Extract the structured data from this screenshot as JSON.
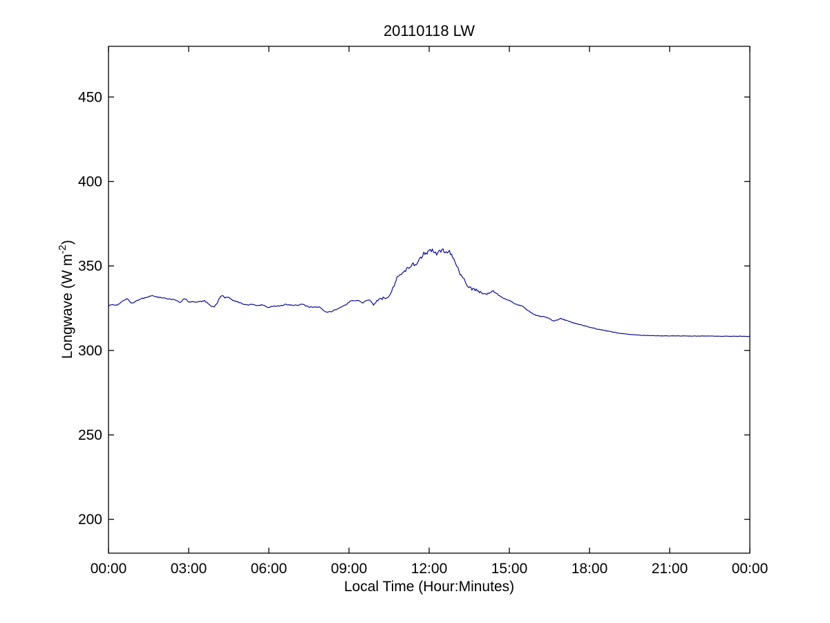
{
  "figure": {
    "title": "20110118 LW",
    "xlabel": "Local Time (Hour:Minutes)",
    "ylabel_prefix": "Longwave (W m",
    "ylabel_sup": "-2",
    "ylabel_suffix": ")"
  },
  "colors": {
    "line": "#000099",
    "axis": "#000000",
    "background": "#ffffff"
  },
  "chart_data": {
    "type": "line",
    "title": "20110118 LW",
    "xlabel": "Local Time (Hour:Minutes)",
    "ylabel": "Longwave (W m^-2)",
    "grid": false,
    "legend": null,
    "xlim_hours": [
      0,
      24
    ],
    "ylim": [
      180,
      480
    ],
    "xticks": [
      "00:00",
      "03:00",
      "06:00",
      "09:00",
      "12:00",
      "15:00",
      "18:00",
      "21:00",
      "00:00"
    ],
    "yticks": [
      200,
      250,
      300,
      350,
      400,
      450
    ],
    "series": [
      {
        "name": "longwave",
        "color": "#000099",
        "units": "W m^-2",
        "x_units": "hours",
        "points": [
          [
            0,
            326.5
          ],
          [
            0.17,
            327.2
          ],
          [
            0.33,
            327
          ],
          [
            0.45,
            328
          ],
          [
            0.6,
            330
          ],
          [
            0.7,
            330.7
          ],
          [
            0.8,
            328.6
          ],
          [
            0.9,
            328
          ],
          [
            1,
            328.8
          ],
          [
            1.15,
            330.2
          ],
          [
            1.3,
            330.8
          ],
          [
            1.5,
            331.9
          ],
          [
            1.6,
            332.3
          ],
          [
            1.7,
            332.3
          ],
          [
            1.85,
            331.5
          ],
          [
            2,
            331.3
          ],
          [
            2.15,
            330.7
          ],
          [
            2.3,
            330.3
          ],
          [
            2.45,
            330
          ],
          [
            2.6,
            329
          ],
          [
            2.7,
            328.5
          ],
          [
            2.8,
            330.3
          ],
          [
            2.87,
            330.9
          ],
          [
            2.95,
            329.3
          ],
          [
            3.05,
            328.4
          ],
          [
            3.15,
            329
          ],
          [
            3.25,
            328.6
          ],
          [
            3.35,
            329
          ],
          [
            3.5,
            329
          ],
          [
            3.6,
            329.4
          ],
          [
            3.7,
            328
          ],
          [
            3.83,
            326.2
          ],
          [
            3.95,
            325.8
          ],
          [
            4.05,
            327.5
          ],
          [
            4.13,
            330.5
          ],
          [
            4.2,
            331.8
          ],
          [
            4.28,
            332.3
          ],
          [
            4.35,
            331
          ],
          [
            4.42,
            331.6
          ],
          [
            4.5,
            331.3
          ],
          [
            4.58,
            330.3
          ],
          [
            4.7,
            329.5
          ],
          [
            4.8,
            328.9
          ],
          [
            4.95,
            328
          ],
          [
            5.1,
            327.2
          ],
          [
            5.2,
            326.8
          ],
          [
            5.32,
            327.4
          ],
          [
            5.45,
            327
          ],
          [
            5.6,
            326.6
          ],
          [
            5.77,
            327
          ],
          [
            5.9,
            326.1
          ],
          [
            5.97,
            325
          ],
          [
            6.05,
            325.8
          ],
          [
            6.2,
            326.3
          ],
          [
            6.35,
            326.3
          ],
          [
            6.5,
            326.6
          ],
          [
            6.6,
            327.1
          ],
          [
            6.75,
            327
          ],
          [
            6.9,
            326.8
          ],
          [
            7,
            326.8
          ],
          [
            7.15,
            327.1
          ],
          [
            7.27,
            327.4
          ],
          [
            7.4,
            326.4
          ],
          [
            7.5,
            325.8
          ],
          [
            7.65,
            325.4
          ],
          [
            7.78,
            325.8
          ],
          [
            7.88,
            325.6
          ],
          [
            7.97,
            325
          ],
          [
            8.1,
            323.1
          ],
          [
            8.22,
            322.7
          ],
          [
            8.35,
            323.1
          ],
          [
            8.5,
            324.1
          ],
          [
            8.62,
            325
          ],
          [
            8.75,
            325.9
          ],
          [
            8.87,
            327
          ],
          [
            9,
            328.7
          ],
          [
            9.1,
            329.6
          ],
          [
            9.25,
            329.5
          ],
          [
            9.4,
            329.2
          ],
          [
            9.52,
            328.2
          ],
          [
            9.65,
            329.4
          ],
          [
            9.75,
            329.8
          ],
          [
            9.85,
            328.8
          ],
          [
            9.93,
            326.9
          ],
          [
            10,
            328.8
          ],
          [
            10.1,
            330.1
          ],
          [
            10.25,
            330.9
          ],
          [
            10.4,
            331.6
          ],
          [
            10.5,
            332.6
          ],
          [
            10.57,
            334.5
          ],
          [
            10.65,
            337
          ],
          [
            10.73,
            341
          ],
          [
            10.83,
            344.6
          ],
          [
            10.93,
            345.6
          ],
          [
            11,
            346
          ],
          [
            11.08,
            347.2
          ],
          [
            11.2,
            348.6
          ],
          [
            11.3,
            349.4
          ],
          [
            11.4,
            351.4
          ],
          [
            11.5,
            350.2
          ],
          [
            11.6,
            353.6
          ],
          [
            11.72,
            355.2
          ],
          [
            11.84,
            357.6
          ],
          [
            11.97,
            358.7
          ],
          [
            12.1,
            359.2
          ],
          [
            12.2,
            356.6
          ],
          [
            12.33,
            358.6
          ],
          [
            12.47,
            359.5
          ],
          [
            12.6,
            358.6
          ],
          [
            12.75,
            358.1
          ],
          [
            12.88,
            355.6
          ],
          [
            12.95,
            352.6
          ],
          [
            13.05,
            348.7
          ],
          [
            13.19,
            344.7
          ],
          [
            13.32,
            341.4
          ],
          [
            13.47,
            338.1
          ],
          [
            13.6,
            336.1
          ],
          [
            13.78,
            335.4
          ],
          [
            13.93,
            334.1
          ],
          [
            14.1,
            333.2
          ],
          [
            14.25,
            333.6
          ],
          [
            14.4,
            335.2
          ],
          [
            14.5,
            334.4
          ],
          [
            14.66,
            331.9
          ],
          [
            14.82,
            330.5
          ],
          [
            15,
            329.6
          ],
          [
            15.16,
            328.1
          ],
          [
            15.34,
            326.9
          ],
          [
            15.5,
            326
          ],
          [
            15.72,
            323.2
          ],
          [
            15.85,
            322
          ],
          [
            16,
            320.6
          ],
          [
            16.2,
            320
          ],
          [
            16.35,
            319.8
          ],
          [
            16.5,
            318.7
          ],
          [
            16.65,
            317.3
          ],
          [
            16.8,
            318.2
          ],
          [
            16.95,
            318.9
          ],
          [
            17.1,
            317.9
          ],
          [
            17.25,
            316.9
          ],
          [
            17.4,
            316.3
          ],
          [
            17.6,
            315.5
          ],
          [
            17.8,
            314.6
          ],
          [
            18,
            313.8
          ],
          [
            18.2,
            313
          ],
          [
            18.4,
            312.3
          ],
          [
            18.6,
            311.7
          ],
          [
            18.8,
            311.1
          ],
          [
            19,
            310.4
          ],
          [
            19.2,
            310
          ],
          [
            19.5,
            309.5
          ],
          [
            19.75,
            309.2
          ],
          [
            20,
            308.9
          ],
          [
            20.5,
            308.7
          ],
          [
            21,
            308.6
          ],
          [
            21.5,
            308.6
          ],
          [
            22,
            308.5
          ],
          [
            22.5,
            308.5
          ],
          [
            23,
            308.4
          ],
          [
            23.5,
            308.4
          ],
          [
            24,
            308.3
          ]
        ]
      }
    ],
    "noise_texture": [
      {
        "from": 0,
        "to": 9.85,
        "amp": 0.3
      },
      {
        "from": 9.85,
        "to": 10.5,
        "amp": 0.8
      },
      {
        "from": 10.5,
        "to": 11.7,
        "amp": 1.0
      },
      {
        "from": 11.7,
        "to": 13.1,
        "amp": 1.5
      },
      {
        "from": 13.1,
        "to": 13.95,
        "amp": 1.0
      },
      {
        "from": 13.95,
        "to": 14.6,
        "amp": 0.6
      },
      {
        "from": 14.6,
        "to": 17.4,
        "amp": 0.3
      },
      {
        "from": 17.4,
        "to": 19,
        "amp": 0.2
      },
      {
        "from": 19,
        "to": 24,
        "amp": 0.1
      }
    ]
  }
}
